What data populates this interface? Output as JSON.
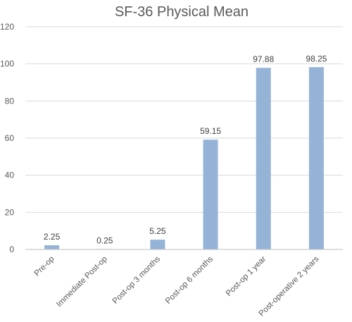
{
  "chart_data": {
    "type": "bar",
    "title": "SF-36 Physical Mean",
    "categories": [
      "Pre-op",
      "Immediate Post-op",
      "Post-op 3 months",
      "Post-op 6 months",
      "Post-op 1 year",
      "Post-operative 2 years"
    ],
    "values": [
      2.25,
      0.25,
      5.25,
      59.15,
      97.88,
      98.25
    ],
    "data_labels": [
      "2.25",
      "0.25",
      "5.25",
      "59.15",
      "97.88",
      "98.25"
    ],
    "ylim": [
      0,
      120
    ],
    "yticks": [
      0,
      20,
      40,
      60,
      80,
      100,
      120
    ],
    "grid": true,
    "legend": "none",
    "bar_color": "#95b3d7"
  }
}
